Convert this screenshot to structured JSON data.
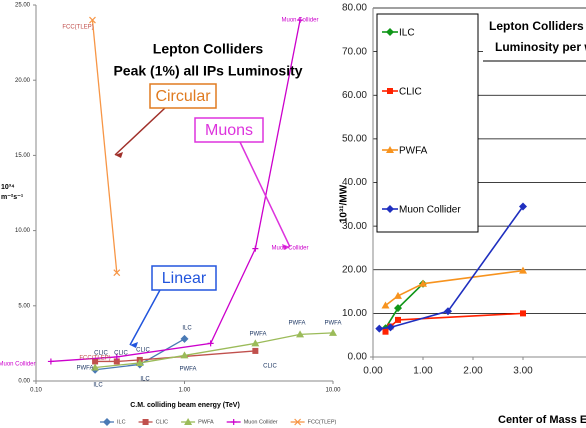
{
  "chart_data": [
    {
      "type": "line",
      "title": "Lepton Colliders",
      "subtitle": "Peak (1%) all IPs Luminosity",
      "xlabel": "C.M. colliding beam energy (TeV)",
      "ylabel": [
        "10³⁴",
        "m⁻²s⁻¹"
      ],
      "xscale": "log",
      "xlim": [
        0.1,
        10
      ],
      "xticks": [
        {
          "value": 0.1,
          "label": "0.10"
        },
        {
          "value": 1,
          "label": "1.00"
        },
        {
          "value": 10,
          "label": "10.00"
        }
      ],
      "ylim": [
        0,
        25
      ],
      "yticks": [
        {
          "value": 0,
          "label": "0.00"
        },
        {
          "value": 5,
          "label": "5.00"
        },
        {
          "value": 10,
          "label": "10.00"
        },
        {
          "value": 15,
          "label": "15.00"
        },
        {
          "value": 20,
          "label": "20.00"
        },
        {
          "value": 25,
          "label": "25.00"
        }
      ],
      "grid": false,
      "legend": "bottom",
      "series": [
        {
          "name": "ILC",
          "color": "#4a7ab5",
          "marker": "diamond",
          "x": [
            0.25,
            0.5,
            1.0
          ],
          "values": [
            0.75,
            1.1,
            2.8
          ]
        },
        {
          "name": "CLIC",
          "color": "#c0504d",
          "marker": "square",
          "x": [
            0.25,
            0.35,
            0.5,
            3.0
          ],
          "values": [
            1.3,
            1.3,
            1.4,
            2.0
          ]
        },
        {
          "name": "PWFA",
          "color": "#9bbb59",
          "marker": "triangle",
          "x": [
            0.25,
            0.5,
            1.0,
            3.0,
            6.0,
            10.0
          ],
          "values": [
            0.9,
            1.2,
            1.7,
            2.5,
            3.1,
            3.2
          ]
        },
        {
          "name": "Muon Collider",
          "color": "#cc00cc",
          "marker": "plus",
          "x": [
            0.126,
            0.35,
            1.5,
            3.0,
            6.0
          ],
          "values": [
            1.3,
            1.6,
            2.5,
            8.8,
            24
          ]
        },
        {
          "name": "FCC(TLEP)",
          "color": "#f79646",
          "marker": "cross",
          "x": [
            0.24,
            0.35
          ],
          "values": [
            24,
            7.2
          ]
        }
      ],
      "callouts": [
        {
          "text": "Circular",
          "color": "#e07b20"
        },
        {
          "text": "Muons",
          "color": "#dd33dd"
        },
        {
          "text": "Linear",
          "color": "#2255dd"
        }
      ],
      "point_labels": [
        {
          "text": "FCC(TLEP)",
          "color": "#c0504d"
        },
        {
          "text": "Muon Collider",
          "color": "#cc00cc"
        },
        {
          "text": "Muon Collider",
          "color": "#cc00cc"
        },
        {
          "text": "FCC(TLEP)",
          "color": "#c0504d"
        },
        {
          "text": "Muon Collider",
          "color": "#cc00cc"
        },
        {
          "text": "ILC",
          "color": "#1f3864"
        },
        {
          "text": "ILC",
          "color": "#1f3864"
        },
        {
          "text": "ILC",
          "color": "#1f3864"
        },
        {
          "text": "CLIC",
          "color": "#1f3864"
        },
        {
          "text": "CLIC",
          "color": "#1f3864"
        },
        {
          "text": "CLIC",
          "color": "#1f3864"
        },
        {
          "text": "CLIC",
          "color": "#1f3864"
        },
        {
          "text": "PWFA",
          "color": "#1f3864"
        },
        {
          "text": "PWFA",
          "color": "#1f3864"
        },
        {
          "text": "PWFA",
          "color": "#1f3864"
        },
        {
          "text": "PWFA",
          "color": "#1f3864"
        },
        {
          "text": "PWFA",
          "color": "#1f3864"
        }
      ]
    },
    {
      "type": "line",
      "title": "Lepton Colliders F",
      "subtitle": "Luminosity per w",
      "xlabel": "Center of Mass Ene",
      "ylabel": [
        "10³¹/MW"
      ],
      "xscale": "linear",
      "xlim": [
        0,
        4
      ],
      "xticks": [
        {
          "value": 0,
          "label": "0.00"
        },
        {
          "value": 1,
          "label": "1.00"
        },
        {
          "value": 2,
          "label": "2.00"
        },
        {
          "value": 3,
          "label": "3.00"
        }
      ],
      "ylim": [
        0,
        80
      ],
      "yticks": [
        {
          "value": 0,
          "label": "0.00"
        },
        {
          "value": 10,
          "label": "10.00"
        },
        {
          "value": 20,
          "label": "20.00"
        },
        {
          "value": 30,
          "label": "30.00"
        },
        {
          "value": 40,
          "label": "40.00"
        },
        {
          "value": 50,
          "label": "50.00"
        },
        {
          "value": 60,
          "label": "60.00"
        },
        {
          "value": 70,
          "label": "70.00"
        },
        {
          "value": 80,
          "label": "80.00"
        }
      ],
      "grid": true,
      "legend": "top-left",
      "series": [
        {
          "name": "ILC",
          "color": "#109618",
          "marker": "diamond",
          "x": [
            0.25,
            0.5,
            1.0
          ],
          "values": [
            6.6,
            11.2,
            16.8
          ]
        },
        {
          "name": "CLIC",
          "color": "#ff2200",
          "marker": "square",
          "x": [
            0.25,
            0.35,
            0.5,
            3.0
          ],
          "values": [
            5.8,
            7.0,
            8.5,
            10.0
          ]
        },
        {
          "name": "PWFA",
          "color": "#f7931e",
          "marker": "triangle",
          "x": [
            0.25,
            0.5,
            1.0,
            3.0
          ],
          "values": [
            11.8,
            14.0,
            16.8,
            19.8
          ]
        },
        {
          "name": "Muon Collider",
          "color": "#1f2fbf",
          "marker": "diamond",
          "x": [
            0.126,
            0.35,
            1.5,
            3.0
          ],
          "values": [
            6.5,
            6.8,
            10.5,
            34.5
          ]
        }
      ]
    }
  ]
}
